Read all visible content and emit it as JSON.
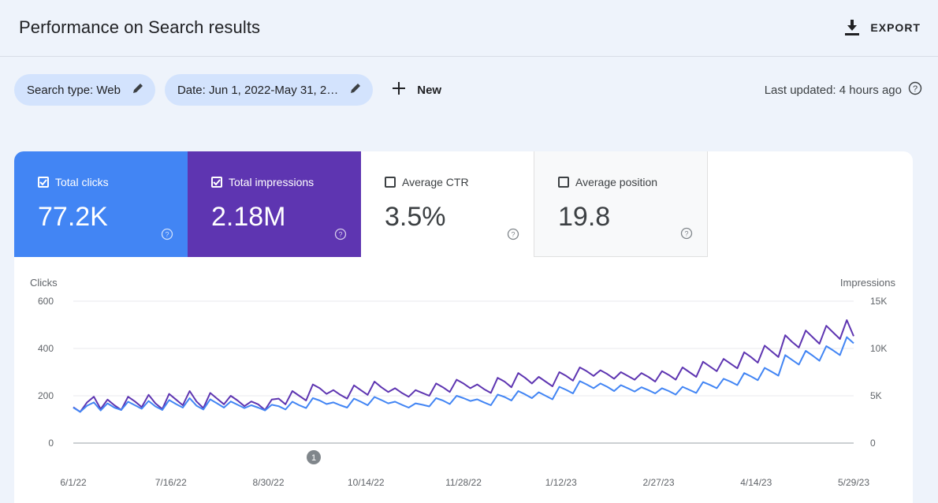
{
  "header": {
    "title": "Performance on Search results",
    "export_label": "EXPORT"
  },
  "filters": {
    "search_type": "Search type: Web",
    "date": "Date: Jun 1, 2022-May 31, 2…",
    "new_label": "New",
    "last_updated": "Last updated: 4 hours ago"
  },
  "metrics": [
    {
      "label": "Total clicks",
      "value": "77.2K",
      "checked": true
    },
    {
      "label": "Total impressions",
      "value": "2.18M",
      "checked": true
    },
    {
      "label": "Average CTR",
      "value": "3.5%",
      "checked": false
    },
    {
      "label": "Average position",
      "value": "19.8",
      "checked": false
    }
  ],
  "colors": {
    "clicks": "#4285f4",
    "impressions": "#5e35b1",
    "chip": "#d3e3fd"
  },
  "chart_data": {
    "type": "line",
    "left_axis_title": "Clicks",
    "right_axis_title": "Impressions",
    "left_ticks": [
      "600",
      "400",
      "200",
      "0"
    ],
    "right_ticks": [
      "15K",
      "10K",
      "5K",
      "0"
    ],
    "left_ylim": [
      0,
      600
    ],
    "right_ylim": [
      0,
      15000
    ],
    "x_ticks": [
      "6/1/22",
      "7/16/22",
      "8/30/22",
      "10/14/22",
      "11/28/22",
      "1/12/23",
      "2/27/23",
      "4/14/23",
      "5/29/23"
    ],
    "annotation_marker": "1",
    "series": [
      {
        "name": "Clicks",
        "axis": "left",
        "color": "#4285f4",
        "values": [
          150,
          132,
          158,
          172,
          138,
          168,
          150,
          140,
          175,
          160,
          145,
          178,
          155,
          140,
          182,
          165,
          150,
          190,
          158,
          142,
          185,
          168,
          150,
          176,
          162,
          148,
          160,
          150,
          138,
          162,
          156,
          142,
          175,
          160,
          148,
          190,
          180,
          165,
          172,
          160,
          150,
          188,
          175,
          160,
          195,
          182,
          168,
          175,
          162,
          150,
          168,
          162,
          155,
          190,
          180,
          165,
          200,
          190,
          178,
          185,
          172,
          160,
          205,
          195,
          180,
          220,
          206,
          190,
          215,
          200,
          185,
          238,
          225,
          210,
          262,
          248,
          232,
          252,
          238,
          220,
          245,
          232,
          218,
          236,
          224,
          210,
          232,
          220,
          205,
          238,
          225,
          212,
          258,
          246,
          232,
          272,
          260,
          245,
          296,
          282,
          266,
          318,
          302,
          285,
          372,
          352,
          332,
          390,
          370,
          348,
          410,
          392,
          372,
          448,
          422
        ]
      },
      {
        "name": "Impressions",
        "axis": "right",
        "color": "#5e35b1",
        "values": [
          3800,
          3300,
          4300,
          4900,
          3600,
          4600,
          4000,
          3500,
          4900,
          4400,
          3800,
          5100,
          4200,
          3600,
          5200,
          4600,
          4000,
          5500,
          4400,
          3700,
          5300,
          4700,
          4100,
          5000,
          4500,
          3900,
          4400,
          4100,
          3500,
          4600,
          4700,
          4100,
          5500,
          5000,
          4500,
          6200,
          5800,
          5200,
          5600,
          5100,
          4700,
          6100,
          5600,
          5100,
          6500,
          5900,
          5400,
          5800,
          5300,
          4900,
          5600,
          5300,
          5000,
          6300,
          5900,
          5400,
          6700,
          6300,
          5800,
          6200,
          5700,
          5300,
          6900,
          6500,
          5900,
          7400,
          6900,
          6300,
          7000,
          6500,
          6000,
          7500,
          7100,
          6600,
          8000,
          7600,
          7100,
          7700,
          7300,
          6800,
          7500,
          7100,
          6700,
          7400,
          7000,
          6500,
          7600,
          7200,
          6700,
          8000,
          7500,
          7000,
          8600,
          8100,
          7600,
          8900,
          8400,
          7900,
          9600,
          9100,
          8500,
          10300,
          9700,
          9100,
          11400,
          10700,
          10100,
          11900,
          11200,
          10500,
          12400,
          11700,
          11000,
          13000,
          11300
        ]
      }
    ]
  }
}
